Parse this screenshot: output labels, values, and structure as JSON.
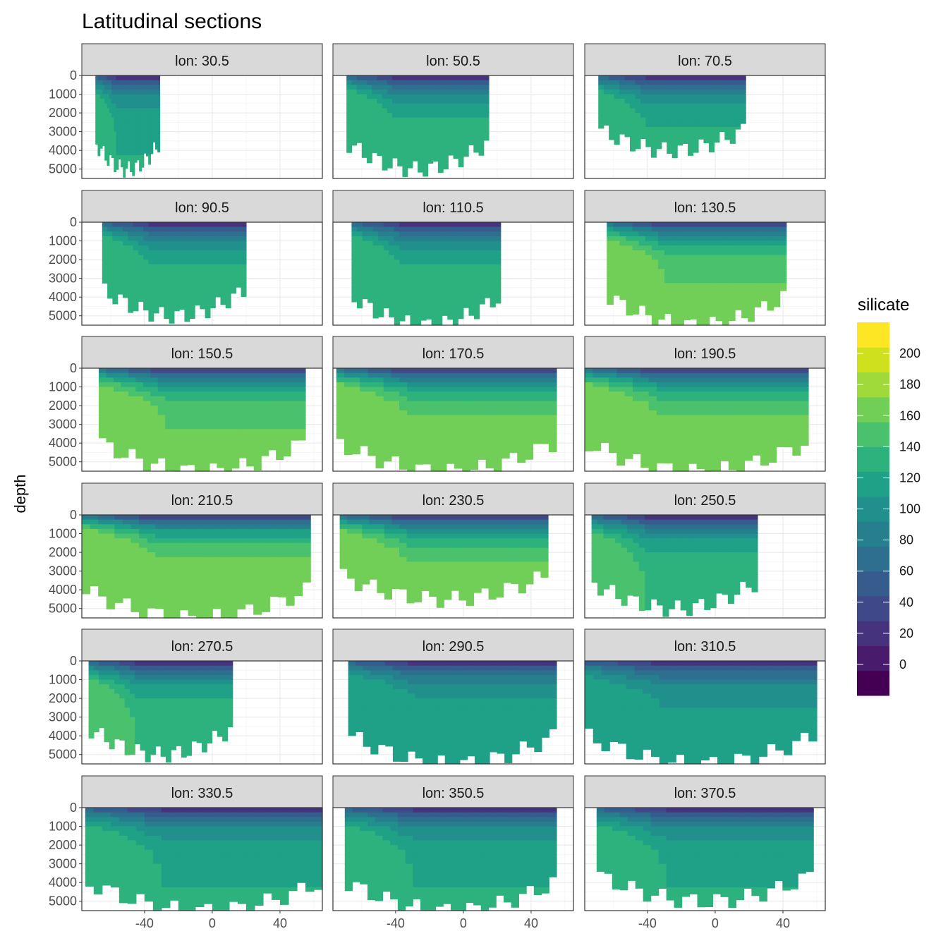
{
  "chart_data": {
    "type": "heatmap",
    "title": "Latitudinal sections",
    "xlabel": "",
    "ylabel": "depth",
    "x_ticks": [
      -40,
      0,
      40
    ],
    "x_range": [
      -77,
      65
    ],
    "y_ticks": [
      0,
      1000,
      2000,
      3000,
      4000,
      5000
    ],
    "y_range": [
      0,
      5500
    ],
    "y_reversed": true,
    "facet_prefix": "lon: ",
    "legend": {
      "title": "silicate",
      "breaks": [
        0,
        20,
        40,
        60,
        80,
        100,
        120,
        140,
        160,
        180,
        200
      ],
      "range": [
        -20,
        220
      ],
      "colors": [
        "#440154",
        "#481B6D",
        "#46337E",
        "#3F4889",
        "#365C8D",
        "#2E6E8E",
        "#277F8E",
        "#21908C",
        "#1FA187",
        "#2DB27D",
        "#4AC16D",
        "#71CF57",
        "#9FDA3A",
        "#CFE11C",
        "#FDE725"
      ]
    },
    "panels": [
      {
        "label": "lon: 30.5",
        "lat_range": [
          -69,
          -31
        ],
        "max_depth": 5000,
        "surface_si": 10,
        "deep_si": 125
      },
      {
        "label": "lon: 50.5",
        "lat_range": [
          -69,
          15
        ],
        "max_depth": 5000,
        "surface_si": 10,
        "deep_si": 135
      },
      {
        "label": "lon: 70.5",
        "lat_range": [
          -69,
          18
        ],
        "max_depth": 4000,
        "surface_si": 10,
        "deep_si": 130
      },
      {
        "label": "lon: 90.5",
        "lat_range": [
          -65,
          20
        ],
        "max_depth": 5000,
        "surface_si": 10,
        "deep_si": 135
      },
      {
        "label": "lon: 110.5",
        "lat_range": [
          -66,
          22
        ],
        "max_depth": 5500,
        "surface_si": 10,
        "deep_si": 135
      },
      {
        "label": "lon: 130.5",
        "lat_range": [
          -64,
          42
        ],
        "max_depth": 5500,
        "surface_si": 10,
        "deep_si": 160
      },
      {
        "label": "lon: 150.5",
        "lat_range": [
          -67,
          55
        ],
        "max_depth": 5500,
        "surface_si": 10,
        "deep_si": 160
      },
      {
        "label": "lon: 170.5",
        "lat_range": [
          -75,
          55
        ],
        "max_depth": 5500,
        "surface_si": 8,
        "deep_si": 165
      },
      {
        "label": "lon: 190.5",
        "lat_range": [
          -77,
          55
        ],
        "max_depth": 5500,
        "surface_si": 8,
        "deep_si": 165
      },
      {
        "label": "lon: 210.5",
        "lat_range": [
          -77,
          58
        ],
        "max_depth": 5500,
        "surface_si": 8,
        "deep_si": 170
      },
      {
        "label": "lon: 230.5",
        "lat_range": [
          -73,
          50
        ],
        "max_depth": 4500,
        "surface_si": 8,
        "deep_si": 165
      },
      {
        "label": "lon: 250.5",
        "lat_range": [
          -73,
          25
        ],
        "max_depth": 5000,
        "surface_si": 8,
        "deep_si": 140
      },
      {
        "label": "lon: 270.5",
        "lat_range": [
          -73,
          12
        ],
        "max_depth": 5000,
        "surface_si": 8,
        "deep_si": 140
      },
      {
        "label": "lon: 290.5",
        "lat_range": [
          -68,
          55
        ],
        "max_depth": 5500,
        "surface_si": 10,
        "deep_si": 120
      },
      {
        "label": "lon: 310.5",
        "lat_range": [
          -77,
          60
        ],
        "max_depth": 5500,
        "surface_si": 10,
        "deep_si": 115
      },
      {
        "label": "lon: 330.5",
        "lat_range": [
          -75,
          65
        ],
        "max_depth": 5500,
        "surface_si": 10,
        "deep_si": 125
      },
      {
        "label": "lon: 350.5",
        "lat_range": [
          -70,
          55
        ],
        "max_depth": 5500,
        "surface_si": 10,
        "deep_si": 125
      },
      {
        "label": "lon: 370.5",
        "lat_range": [
          -70,
          58
        ],
        "max_depth": 5000,
        "surface_si": 10,
        "deep_si": 125
      }
    ]
  }
}
